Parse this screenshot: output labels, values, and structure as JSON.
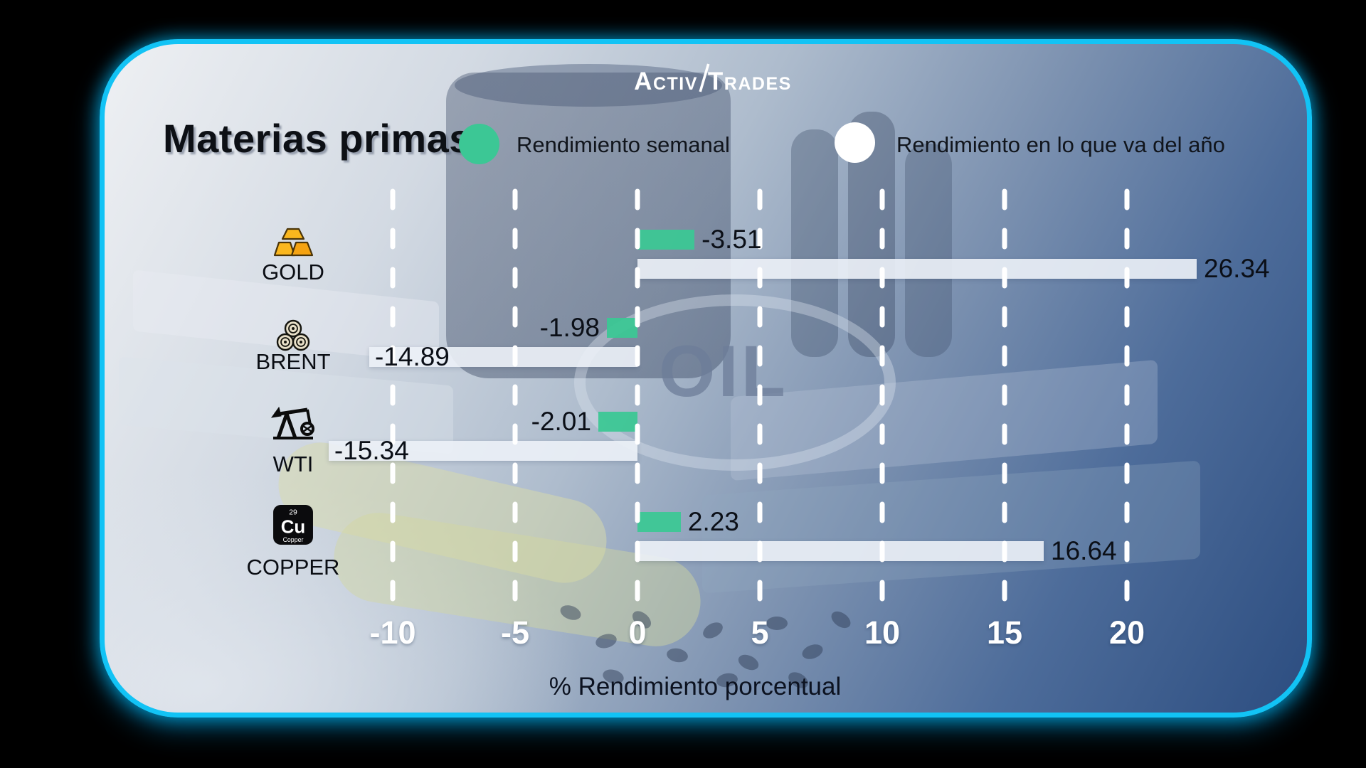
{
  "brand": {
    "logo_left": "Activ",
    "logo_right": "Trades"
  },
  "header": {
    "title": "Materias primas"
  },
  "legend": {
    "weekly": {
      "label": "Rendimiento semanal",
      "color": "#3cc795",
      "marker": "green-circle"
    },
    "ytd": {
      "label": "Rendimiento en lo que va del año",
      "color": "#ffffff",
      "marker": "white-circle"
    }
  },
  "background": {
    "oil_text": "OIL"
  },
  "colors": {
    "accent_green": "#3cc795",
    "bar_white": "#edf1f6",
    "border_cyan": "#12c3f5",
    "tick_text": "#ffffff",
    "value_text": "#0b0f17"
  },
  "chart_data": {
    "type": "bar",
    "orientation": "horizontal",
    "title": "Materias primas",
    "xlabel": "% Rendimiento porcentual",
    "x_ticks": [
      -10,
      -5,
      0,
      5,
      10,
      15,
      20
    ],
    "xlim": [
      -17.5,
      25.5
    ],
    "grid": "vertical-dashed-white",
    "legend_position": "top",
    "categories": [
      "GOLD",
      "BRENT",
      "WTI",
      "COPPER"
    ],
    "series": [
      {
        "name": "Rendimiento semanal",
        "color": "rgba(60,199,149,0.95)",
        "values": [
          -3.51,
          -1.98,
          -2.01,
          2.23
        ]
      },
      {
        "name": "Rendimiento en lo que va del año",
        "color": "rgba(236,241,247,0.9)",
        "values": [
          26.34,
          -14.89,
          -15.34,
          16.64
        ]
      }
    ]
  },
  "rows": [
    {
      "id": "gold",
      "label": "GOLD",
      "icon": "gold-bars-icon",
      "weekly": {
        "value": -3.51,
        "label": "-3.51",
        "bar_from": 0,
        "bar_to": 2.33,
        "label_pos": "right"
      },
      "ytd": {
        "value": 26.34,
        "label": "26.34",
        "bar_from": 0,
        "bar_to": 22.85,
        "label_pos": "right"
      }
    },
    {
      "id": "brent",
      "label": "BRENT",
      "icon": "oil-barrels-icon",
      "weekly": {
        "value": -1.98,
        "label": "-1.98",
        "bar_from": -1.25,
        "bar_to": 0,
        "label_pos": "left"
      },
      "ytd": {
        "value": -14.89,
        "label": "-14.89",
        "bar_from": -10.96,
        "bar_to": 0,
        "label_pos": "inside-left"
      }
    },
    {
      "id": "wti",
      "label": "WTI",
      "icon": "oil-pumpjack-icon",
      "weekly": {
        "value": -2.01,
        "label": "-2.01",
        "bar_from": -1.6,
        "bar_to": 0,
        "label_pos": "left"
      },
      "ytd": {
        "value": -15.34,
        "label": "-15.34",
        "bar_from": -12.62,
        "bar_to": 0,
        "label_pos": "inside-left"
      }
    },
    {
      "id": "copper",
      "label": "COPPER",
      "icon": "copper-element-icon",
      "weekly": {
        "value": 2.23,
        "label": "2.23",
        "bar_from": 0,
        "bar_to": 1.77,
        "label_pos": "right"
      },
      "ytd": {
        "value": 16.64,
        "label": "16.64",
        "bar_from": 0,
        "bar_to": 16.6,
        "label_pos": "right"
      }
    }
  ]
}
